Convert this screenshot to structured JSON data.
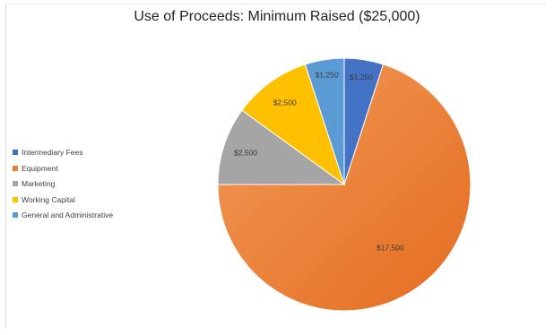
{
  "chart_data": {
    "type": "pie",
    "title": "Use of Proceeds: Minimum Raised ($25,000)",
    "legend_position": "left",
    "slices": [
      {
        "name": "Intermediary Fees",
        "value": 1250,
        "label": "$1,250",
        "color": "#4472c4"
      },
      {
        "name": "Equipment",
        "value": 17500,
        "label": "$17,500",
        "color": "#ed7d31"
      },
      {
        "name": "Marketing",
        "value": 2500,
        "label": "$2,500",
        "color": "#a5a5a5"
      },
      {
        "name": "Working Capital",
        "value": 2500,
        "label": "$2,500",
        "color": "#ffc000"
      },
      {
        "name": "General and Administrative",
        "value": 1250,
        "label": "$1,250",
        "color": "#5b9bd5"
      }
    ]
  }
}
